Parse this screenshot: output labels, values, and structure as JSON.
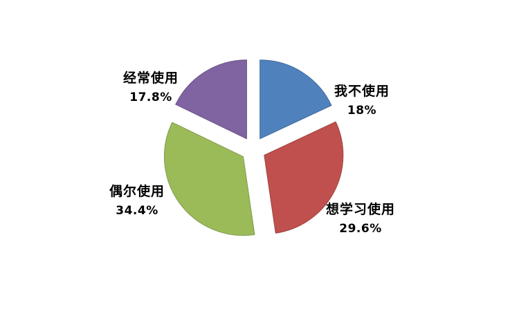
{
  "chart_data": {
    "type": "pie",
    "title": "",
    "exploded": true,
    "legend_position": "none",
    "background_color": "#FFFFFF",
    "label_color": "#000000",
    "start_angle_deg": 0,
    "slices": [
      {
        "label": "我不使用",
        "pct_label": "18%",
        "value": 18,
        "color": "#4F81BD"
      },
      {
        "label": "想学习使用",
        "pct_label": "29.6%",
        "value": 29.6,
        "color": "#C0504D"
      },
      {
        "label": "偶尔使用",
        "pct_label": "34.4%",
        "value": 34.4,
        "color": "#9BBB59"
      },
      {
        "label": "经常使用",
        "pct_label": "17.8%",
        "value": 17.8,
        "color": "#8064A2"
      }
    ]
  }
}
